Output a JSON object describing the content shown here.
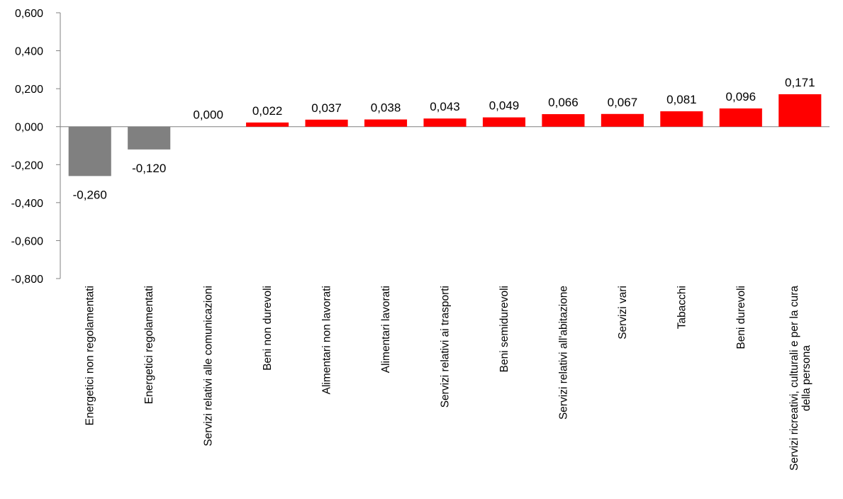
{
  "chart_data": {
    "type": "bar",
    "title": "",
    "xlabel": "",
    "ylabel": "",
    "ylim": [
      -0.8,
      0.6
    ],
    "yticks": [
      0.6,
      0.4,
      0.2,
      0.0,
      -0.2,
      -0.4,
      -0.6,
      -0.8
    ],
    "ytick_labels": [
      "0,600",
      "0,400",
      "0,200",
      "0,000",
      "-0,200",
      "-0,400",
      "-0,600",
      "-0,800"
    ],
    "grid": false,
    "legend": "none",
    "colors": {
      "positive": "#ff0000",
      "negative": "#808080",
      "axis": "#808080"
    },
    "categories": [
      [
        "Energetici non regolamentati"
      ],
      [
        "Energetici regolamentati"
      ],
      [
        "Servizi relativi alle comunicazioni"
      ],
      [
        "Beni non durevoli"
      ],
      [
        "Alimentari non lavorati"
      ],
      [
        "Alimentari lavorati"
      ],
      [
        "Servizi relativi ai trasporti"
      ],
      [
        "Beni semidurevoli"
      ],
      [
        "Servizi relativi all'abitazione"
      ],
      [
        "Servizi vari"
      ],
      [
        "Tabacchi"
      ],
      [
        "Beni durevoli"
      ],
      [
        "Servizi ricreativi, culturali e per la cura",
        "della persona"
      ]
    ],
    "values": [
      -0.26,
      -0.12,
      0.0,
      0.022,
      0.037,
      0.038,
      0.043,
      0.049,
      0.066,
      0.067,
      0.081,
      0.096,
      0.171
    ],
    "data_labels": [
      "-0,260",
      "-0,120",
      "0,000",
      "0,022",
      "0,037",
      "0,038",
      "0,043",
      "0,049",
      "0,066",
      "0,067",
      "0,081",
      "0,096",
      "0,171"
    ]
  }
}
